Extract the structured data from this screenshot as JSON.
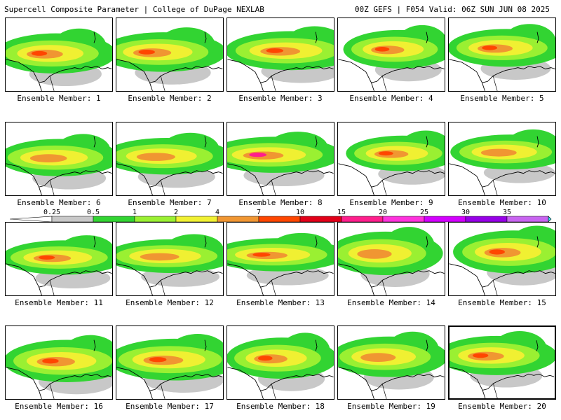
{
  "header": {
    "left": "Supercell Composite Parameter | College of DuPage NEXLAB",
    "right": "00Z GEFS | F054 Valid: 06Z SUN JUN 08 2025"
  },
  "selected_member": 20,
  "members": [
    {
      "label": "Ensemble Member: 1",
      "max": "red"
    },
    {
      "label": "Ensemble Member: 2",
      "max": "red"
    },
    {
      "label": "Ensemble Member: 3",
      "max": "red"
    },
    {
      "label": "Ensemble Member: 4",
      "max": "red"
    },
    {
      "label": "Ensemble Member: 5",
      "max": "red"
    },
    {
      "label": "Ensemble Member: 6",
      "max": "orange"
    },
    {
      "label": "Ensemble Member: 7",
      "max": "orange"
    },
    {
      "label": "Ensemble Member: 8",
      "max": "magenta"
    },
    {
      "label": "Ensemble Member: 9",
      "max": "red"
    },
    {
      "label": "Ensemble Member: 10",
      "max": "orange"
    },
    {
      "label": "Ensemble Member: 11",
      "max": "red"
    },
    {
      "label": "Ensemble Member: 12",
      "max": "orange"
    },
    {
      "label": "Ensemble Member: 13",
      "max": "red"
    },
    {
      "label": "Ensemble Member: 14",
      "max": "orange"
    },
    {
      "label": "Ensemble Member: 15",
      "max": "red"
    },
    {
      "label": "Ensemble Member: 16",
      "max": "red"
    },
    {
      "label": "Ensemble Member: 17",
      "max": "red"
    },
    {
      "label": "Ensemble Member: 18",
      "max": "red"
    },
    {
      "label": "Ensemble Member: 19",
      "max": "orange"
    },
    {
      "label": "Ensemble Member: 20",
      "max": "red"
    }
  ],
  "colorbar": {
    "labels": [
      "0.25",
      "0.5",
      "1",
      "2",
      "4",
      "7",
      "10",
      "15",
      "20",
      "25",
      "30",
      "35"
    ],
    "colors": [
      "#c8c8c8",
      "#32d432",
      "#9af032",
      "#f0f032",
      "#f09632",
      "#ff4600",
      "#e10019",
      "#ff1e8c",
      "#ff32dc",
      "#d200ff",
      "#9600e6",
      "#c864f0",
      "#32e6f0"
    ]
  }
}
